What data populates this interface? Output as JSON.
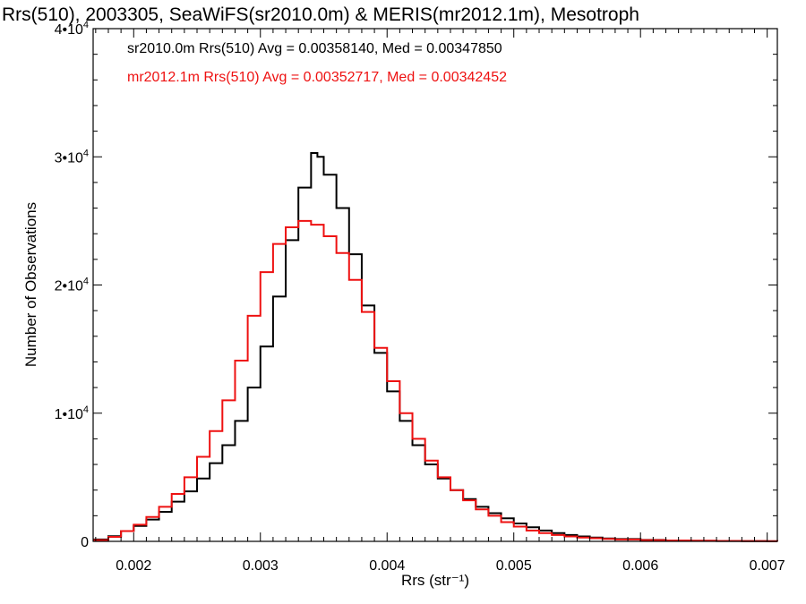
{
  "chart_data": {
    "type": "line",
    "style": "step-histogram",
    "title": "Rrs(510), 2003305, SeaWiFS(sr2010.0m) & MERIS(mr2012.1m), Mesotroph",
    "xlabel": "Rrs (str⁻¹)",
    "ylabel": "Number of Observations",
    "xlim": [
      0.00168,
      0.00708
    ],
    "ylim": [
      0,
      40000
    ],
    "xticks": [
      {
        "value": 0.002,
        "label": "0.002"
      },
      {
        "value": 0.003,
        "label": "0.003"
      },
      {
        "value": 0.004,
        "label": "0.004"
      },
      {
        "value": 0.005,
        "label": "0.005"
      },
      {
        "value": 0.006,
        "label": "0.006"
      },
      {
        "value": 0.007,
        "label": "0.007"
      }
    ],
    "yticks": [
      {
        "value": 0,
        "label": "0",
        "sup": ""
      },
      {
        "value": 10000,
        "label": "1•10",
        "sup": "4"
      },
      {
        "value": 20000,
        "label": "2•10",
        "sup": "4"
      },
      {
        "value": 30000,
        "label": "3•10",
        "sup": "4"
      },
      {
        "value": 40000,
        "label": "4•10",
        "sup": "4"
      }
    ],
    "grid": false,
    "legend_position": "top-left",
    "series": [
      {
        "name": "sr2010.0m",
        "label": "sr2010.0m Rrs(510) Avg = 0.00358140, Med = 0.00347850",
        "color": "#000000",
        "points": [
          [
            0.00168,
            150
          ],
          [
            0.0018,
            400
          ],
          [
            0.0019,
            800
          ],
          [
            0.002,
            1200
          ],
          [
            0.0021,
            1700
          ],
          [
            0.0022,
            2300
          ],
          [
            0.0023,
            3100
          ],
          [
            0.0024,
            3900
          ],
          [
            0.0025,
            4900
          ],
          [
            0.0026,
            6100
          ],
          [
            0.0027,
            7500
          ],
          [
            0.0028,
            9400
          ],
          [
            0.0029,
            12000
          ],
          [
            0.003,
            15200
          ],
          [
            0.0031,
            19100
          ],
          [
            0.0032,
            23500
          ],
          [
            0.0033,
            27600
          ],
          [
            0.0034,
            30300
          ],
          [
            0.00345,
            30000
          ],
          [
            0.0035,
            28600
          ],
          [
            0.0036,
            26000
          ],
          [
            0.0037,
            22400
          ],
          [
            0.0038,
            18400
          ],
          [
            0.0039,
            14700
          ],
          [
            0.004,
            11700
          ],
          [
            0.0041,
            9400
          ],
          [
            0.0042,
            7500
          ],
          [
            0.0043,
            6000
          ],
          [
            0.0044,
            4900
          ],
          [
            0.0045,
            4000
          ],
          [
            0.0046,
            3300
          ],
          [
            0.0047,
            2700
          ],
          [
            0.0048,
            2200
          ],
          [
            0.0049,
            1800
          ],
          [
            0.005,
            1400
          ],
          [
            0.0051,
            1100
          ],
          [
            0.0052,
            850
          ],
          [
            0.0053,
            650
          ],
          [
            0.0054,
            500
          ],
          [
            0.0055,
            380
          ],
          [
            0.0056,
            300
          ],
          [
            0.0057,
            230
          ],
          [
            0.0058,
            180
          ],
          [
            0.006,
            110
          ],
          [
            0.0062,
            70
          ],
          [
            0.0064,
            45
          ],
          [
            0.0066,
            30
          ],
          [
            0.0068,
            20
          ],
          [
            0.007,
            10
          ],
          [
            0.00708,
            5
          ]
        ]
      },
      {
        "name": "mr2012.1m",
        "label": "mr2012.1m Rrs(510) Avg = 0.00352717, Med = 0.00342452",
        "color": "#ee1111",
        "points": [
          [
            0.00168,
            100
          ],
          [
            0.0018,
            350
          ],
          [
            0.0019,
            800
          ],
          [
            0.002,
            1300
          ],
          [
            0.0021,
            1900
          ],
          [
            0.0022,
            2700
          ],
          [
            0.0023,
            3700
          ],
          [
            0.0024,
            5000
          ],
          [
            0.0025,
            6600
          ],
          [
            0.0026,
            8600
          ],
          [
            0.0027,
            11000
          ],
          [
            0.0028,
            14100
          ],
          [
            0.0029,
            17600
          ],
          [
            0.003,
            21000
          ],
          [
            0.0031,
            23200
          ],
          [
            0.0032,
            24500
          ],
          [
            0.0033,
            25000
          ],
          [
            0.0034,
            24700
          ],
          [
            0.0035,
            23800
          ],
          [
            0.0036,
            22500
          ],
          [
            0.0037,
            20400
          ],
          [
            0.0038,
            17900
          ],
          [
            0.0039,
            15100
          ],
          [
            0.004,
            12500
          ],
          [
            0.0041,
            10000
          ],
          [
            0.0042,
            8000
          ],
          [
            0.0043,
            6300
          ],
          [
            0.0044,
            5000
          ],
          [
            0.0045,
            4000
          ],
          [
            0.0046,
            3200
          ],
          [
            0.0047,
            2500
          ],
          [
            0.0048,
            2000
          ],
          [
            0.0049,
            1500
          ],
          [
            0.005,
            1150
          ],
          [
            0.0051,
            850
          ],
          [
            0.0052,
            650
          ],
          [
            0.0053,
            500
          ],
          [
            0.0054,
            380
          ],
          [
            0.0055,
            300
          ],
          [
            0.0056,
            240
          ],
          [
            0.0057,
            190
          ],
          [
            0.0058,
            150
          ],
          [
            0.006,
            100
          ],
          [
            0.0062,
            70
          ],
          [
            0.0064,
            50
          ],
          [
            0.0066,
            35
          ],
          [
            0.0068,
            25
          ],
          [
            0.007,
            15
          ],
          [
            0.00708,
            10
          ]
        ]
      }
    ]
  }
}
